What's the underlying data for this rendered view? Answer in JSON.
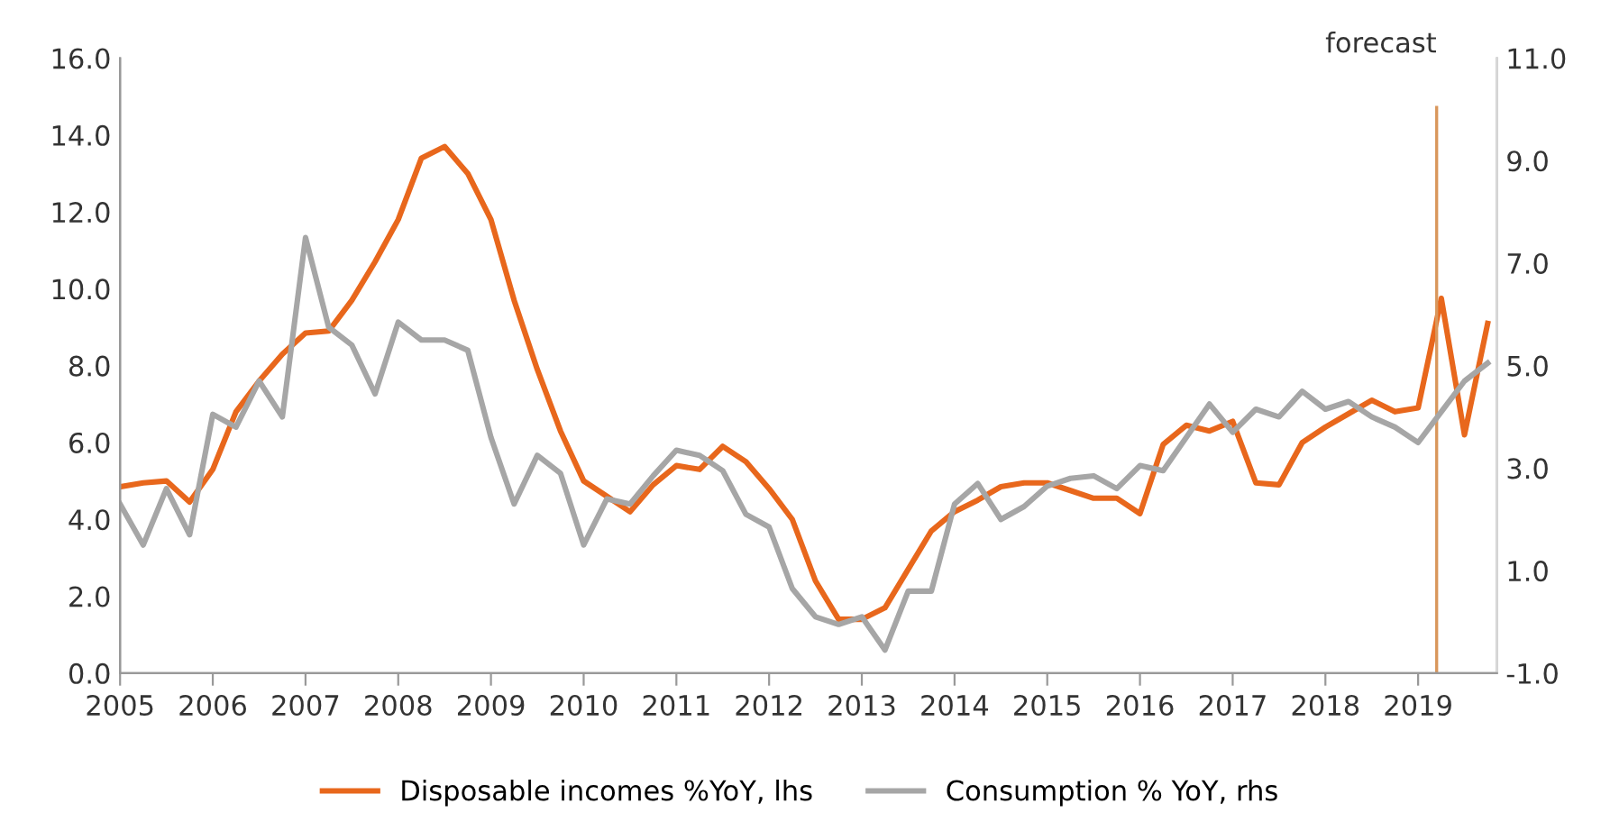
{
  "chart_data": {
    "type": "line",
    "x": [
      2005.0,
      2005.25,
      2005.5,
      2005.75,
      2006.0,
      2006.25,
      2006.5,
      2006.75,
      2007.0,
      2007.25,
      2007.5,
      2007.75,
      2008.0,
      2008.25,
      2008.5,
      2008.75,
      2009.0,
      2009.25,
      2009.5,
      2009.75,
      2010.0,
      2010.25,
      2010.5,
      2010.75,
      2011.0,
      2011.25,
      2011.5,
      2011.75,
      2012.0,
      2012.25,
      2012.5,
      2012.75,
      2013.0,
      2013.25,
      2013.5,
      2013.75,
      2014.0,
      2014.25,
      2014.5,
      2014.75,
      2015.0,
      2015.25,
      2015.5,
      2015.75,
      2016.0,
      2016.25,
      2016.5,
      2016.75,
      2017.0,
      2017.25,
      2017.5,
      2017.75,
      2018.0,
      2018.25,
      2018.5,
      2018.75,
      2019.0,
      2019.25,
      2019.5,
      2019.75
    ],
    "series": [
      {
        "name": "Disposable incomes %YoY, lhs",
        "color": "#e8671c",
        "values": [
          4.85,
          4.95,
          5.0,
          4.45,
          5.3,
          6.8,
          7.6,
          8.3,
          8.85,
          8.9,
          9.7,
          10.7,
          11.8,
          13.4,
          13.7,
          13.0,
          11.8,
          9.7,
          7.9,
          6.3,
          5.0,
          4.6,
          4.2,
          4.9,
          5.4,
          5.3,
          5.9,
          5.5,
          4.8,
          4.0,
          2.4,
          1.4,
          1.4,
          1.7,
          2.7,
          3.7,
          4.2,
          4.5,
          4.85,
          4.95,
          4.95,
          4.75,
          4.55,
          4.55,
          4.15,
          5.95,
          6.45,
          6.3,
          6.55,
          4.95,
          4.9,
          6.0,
          6.4,
          6.75,
          7.1,
          6.8,
          6.9,
          9.75,
          6.2,
          9.1
        ]
      },
      {
        "name": "Consumption % YoY, rhs",
        "color": "#a6a6a6",
        "axis": "y2",
        "values": [
          2.3,
          1.5,
          2.6,
          1.7,
          4.05,
          3.8,
          4.7,
          4.0,
          7.5,
          5.75,
          5.4,
          4.45,
          5.85,
          5.5,
          5.5,
          5.3,
          3.6,
          2.3,
          3.25,
          2.9,
          1.5,
          2.4,
          2.3,
          2.85,
          3.35,
          3.25,
          2.95,
          2.1,
          1.85,
          0.65,
          0.1,
          -0.05,
          0.1,
          -0.55,
          0.6,
          0.6,
          2.3,
          2.7,
          2.0,
          2.25,
          2.65,
          2.8,
          2.85,
          2.6,
          3.05,
          2.95,
          3.6,
          4.25,
          3.7,
          4.15,
          4.0,
          4.5,
          4.15,
          4.3,
          4.0,
          3.8,
          3.5,
          4.1,
          4.7,
          5.05
        ]
      }
    ],
    "xlim": [
      2005,
      2019.85
    ],
    "xticks": [
      2005,
      2006,
      2007,
      2008,
      2009,
      2010,
      2011,
      2012,
      2013,
      2014,
      2015,
      2016,
      2017,
      2018,
      2019
    ],
    "ylim": [
      0,
      16
    ],
    "yticks": [
      {
        "value": 0,
        "label": "0.0"
      },
      {
        "value": 2,
        "label": "2.0"
      },
      {
        "value": 4,
        "label": "4.0"
      },
      {
        "value": 6,
        "label": "6.0"
      },
      {
        "value": 8,
        "label": "8.0"
      },
      {
        "value": 10,
        "label": "10.0"
      },
      {
        "value": 12,
        "label": "12.0"
      },
      {
        "value": 14,
        "label": "14.0"
      },
      {
        "value": 16,
        "label": "16.0"
      }
    ],
    "y2lim": [
      -1,
      11
    ],
    "y2ticks": [
      {
        "value": -1,
        "label": "-1.0"
      },
      {
        "value": 1,
        "label": "1.0"
      },
      {
        "value": 3,
        "label": "3.0"
      },
      {
        "value": 5,
        "label": "5.0"
      },
      {
        "value": 7,
        "label": "7.0"
      },
      {
        "value": 9,
        "label": "9.0"
      },
      {
        "value": 11,
        "label": "11.0"
      }
    ],
    "ref_lines": [
      {
        "axis": "x",
        "value": 2019.2,
        "label": "forecast",
        "color": "#d9975c"
      }
    ],
    "grid": false,
    "legend": "bottom",
    "marker": "none",
    "line_style": "solid"
  }
}
